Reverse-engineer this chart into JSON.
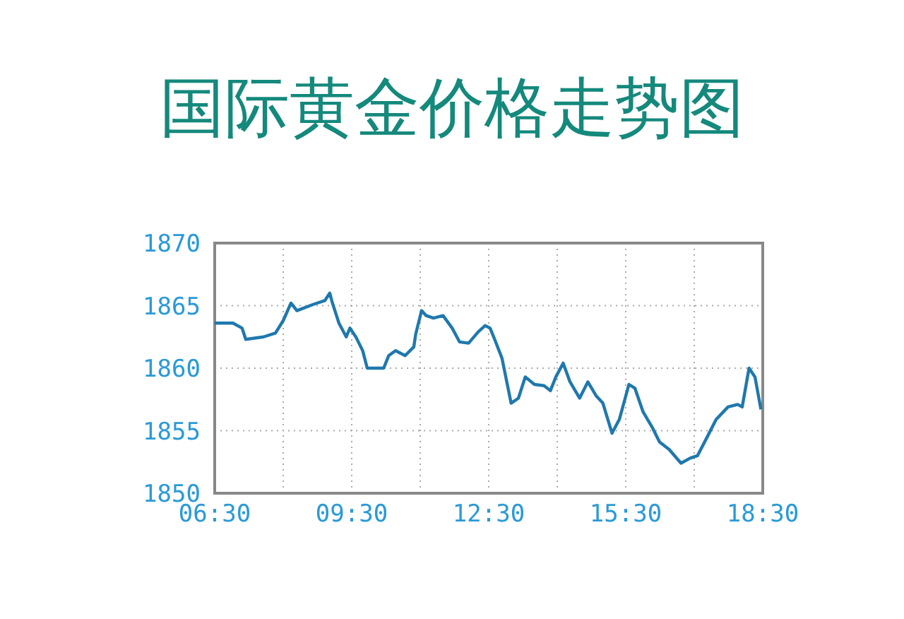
{
  "chart_data": {
    "type": "line",
    "title": "国际黄金价格走势图",
    "x": [
      6.5,
      6.9,
      7.1,
      7.18,
      7.57,
      7.83,
      8.0,
      8.17,
      8.3,
      8.66,
      8.91,
      9.02,
      9.07,
      9.22,
      9.38,
      9.46,
      9.59,
      9.74,
      9.84,
      10.2,
      10.31,
      10.46,
      10.67,
      10.86,
      10.9,
      11.03,
      11.13,
      11.29,
      11.5,
      11.7,
      11.86,
      12.06,
      12.27,
      12.42,
      12.53,
      12.63,
      12.79,
      12.99,
      13.15,
      13.3,
      13.5,
      13.71,
      13.85,
      13.97,
      14.13,
      14.28,
      14.49,
      14.67,
      14.85,
      15.0,
      15.2,
      15.36,
      15.57,
      15.7,
      15.88,
      16.09,
      16.24,
      16.45,
      16.71,
      16.91,
      17.07,
      17.27,
      17.48,
      17.74,
      17.95,
      18.05,
      18.2,
      18.33,
      18.46
    ],
    "series": [
      {
        "color": "#1f78ad",
        "values": [
          1863.6,
          1863.6,
          1863.2,
          1862.3,
          1862.5,
          1862.8,
          1863.8,
          1865.2,
          1864.6,
          1865.1,
          1865.4,
          1866.0,
          1865.3,
          1863.6,
          1862.5,
          1863.2,
          1862.5,
          1861.4,
          1860.0,
          1860.0,
          1861.0,
          1861.4,
          1861.0,
          1861.7,
          1862.7,
          1864.6,
          1864.2,
          1864.0,
          1864.2,
          1863.2,
          1862.1,
          1862.0,
          1862.9,
          1863.4,
          1863.2,
          1862.3,
          1860.8,
          1857.2,
          1857.6,
          1859.3,
          1858.7,
          1858.6,
          1858.2,
          1859.3,
          1860.4,
          1858.9,
          1857.6,
          1858.9,
          1857.8,
          1857.2,
          1854.8,
          1855.9,
          1858.7,
          1858.4,
          1856.5,
          1855.2,
          1854.1,
          1853.5,
          1852.4,
          1852.8,
          1853.0,
          1854.4,
          1855.9,
          1856.9,
          1857.1,
          1856.9,
          1860.0,
          1859.3,
          1856.7
        ]
      }
    ],
    "xlim": [
      6.5,
      18.5
    ],
    "xticks": [
      {
        "value": 6.5,
        "label": "06:30"
      },
      {
        "value": 8,
        "label": null
      },
      {
        "value": 9.5,
        "label": "09:30"
      },
      {
        "value": 11,
        "label": null
      },
      {
        "value": 12.5,
        "label": "12:30"
      },
      {
        "value": 14,
        "label": null
      },
      {
        "value": 15.5,
        "label": "15:30"
      },
      {
        "value": 17,
        "label": null
      },
      {
        "value": 18.5,
        "label": "18:30"
      }
    ],
    "ylim": [
      1850,
      1870
    ],
    "yticks": [
      1850,
      1855,
      1860,
      1865,
      1870
    ],
    "grid": true,
    "line_style": "solid"
  }
}
